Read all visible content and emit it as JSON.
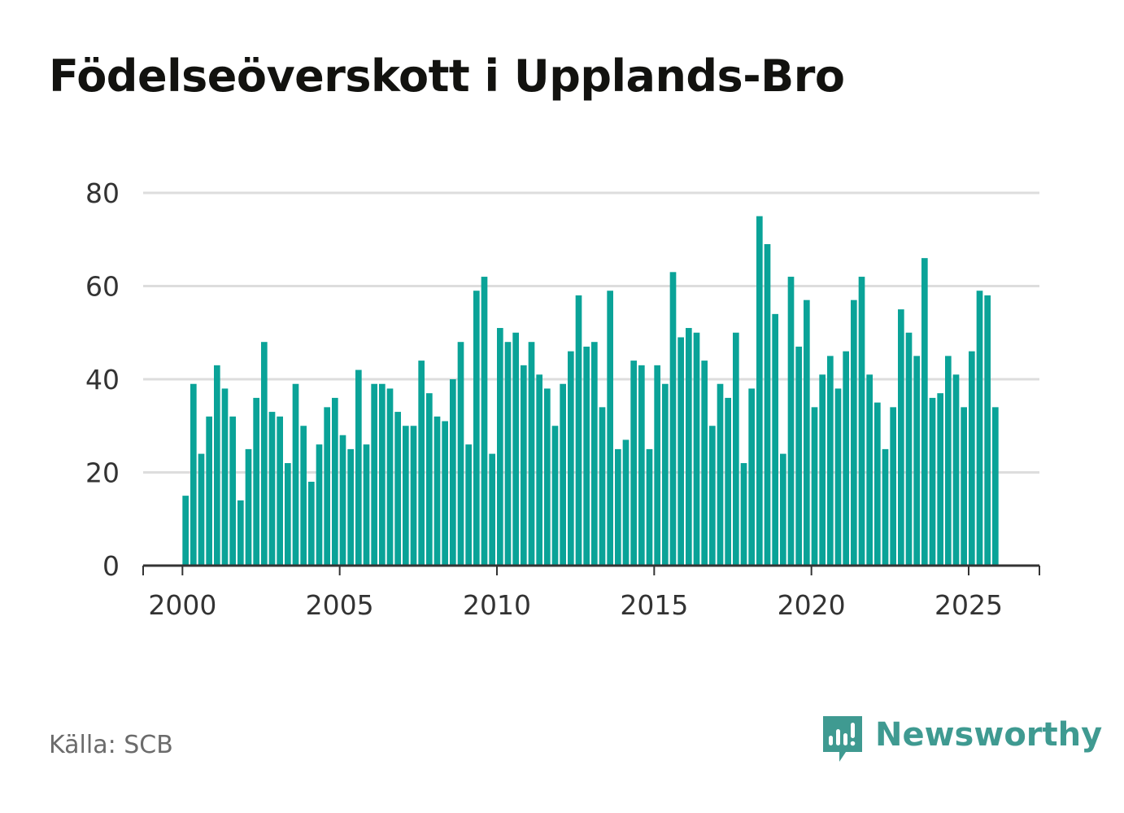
{
  "chart_data": {
    "type": "bar",
    "title": "Födelseöverskott i Upplands-Bro",
    "xlabel": "",
    "ylabel": "",
    "ylim": [
      0,
      80
    ],
    "yticks": [
      0,
      20,
      40,
      60,
      80
    ],
    "xticks": [
      2000,
      2005,
      2010,
      2015,
      2020,
      2025
    ],
    "xlim": [
      1998.75,
      2027.25
    ],
    "grid": true,
    "bar_color": "#0aa398",
    "series": [
      {
        "name": "Födelseöverskott",
        "x_start": 2000.0,
        "x_step": 0.25,
        "values": [
          15,
          39,
          24,
          32,
          43,
          38,
          32,
          14,
          25,
          36,
          48,
          33,
          32,
          22,
          39,
          30,
          18,
          26,
          34,
          36,
          28,
          25,
          42,
          26,
          39,
          39,
          38,
          33,
          30,
          30,
          44,
          37,
          32,
          31,
          40,
          48,
          26,
          59,
          62,
          24,
          51,
          48,
          50,
          43,
          48,
          41,
          38,
          30,
          39,
          46,
          58,
          47,
          48,
          34,
          59,
          25,
          27,
          44,
          43,
          25,
          43,
          39,
          63,
          49,
          51,
          50,
          44,
          30,
          39,
          36,
          50,
          22,
          38,
          75,
          69,
          54,
          24,
          62,
          47,
          57,
          34,
          41,
          45,
          38,
          46,
          57,
          62,
          41,
          35,
          25,
          34,
          55,
          50,
          45,
          66,
          36,
          37,
          45,
          41,
          34,
          46,
          59,
          58,
          34
        ]
      }
    ]
  },
  "footer": {
    "source": "Källa: SCB",
    "brand": "Newsworthy",
    "brand_color": "#3f9a91"
  }
}
